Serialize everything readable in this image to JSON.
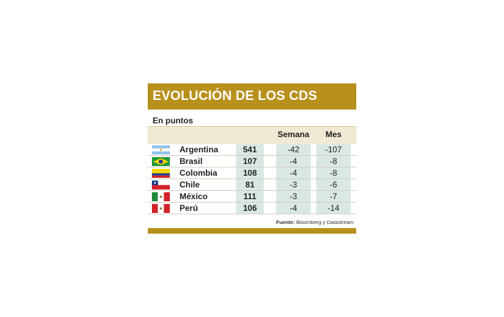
{
  "colors": {
    "accent": "#b8901c",
    "header_band": "#f1e9d4",
    "cell_fill": "#d9e8e2"
  },
  "chart_data": {
    "type": "table",
    "title": "EVOLUCIÓN DE LOS CDS",
    "subtitle": "En puntos",
    "columns": [
      "",
      "Semana",
      "Mes"
    ],
    "rows": [
      {
        "country": "Argentina",
        "flag": "argentina-flag-icon",
        "value": "541",
        "semana": "-42",
        "mes": "-107"
      },
      {
        "country": "Brasil",
        "flag": "brazil-flag-icon",
        "value": "107",
        "semana": "-4",
        "mes": "-8"
      },
      {
        "country": "Colombia",
        "flag": "colombia-flag-icon",
        "value": "108",
        "semana": "-4",
        "mes": "-8"
      },
      {
        "country": "Chile",
        "flag": "chile-flag-icon",
        "value": "81",
        "semana": "-3",
        "mes": "-6"
      },
      {
        "country": "México",
        "flag": "mexico-flag-icon",
        "value": "111",
        "semana": "-3",
        "mes": "-7"
      },
      {
        "country": "Perú",
        "flag": "peru-flag-icon",
        "value": "106",
        "semana": "-4",
        "mes": "-14"
      }
    ],
    "source_label": "Fuente:",
    "source_text": "Bloomberg y Datastream"
  }
}
